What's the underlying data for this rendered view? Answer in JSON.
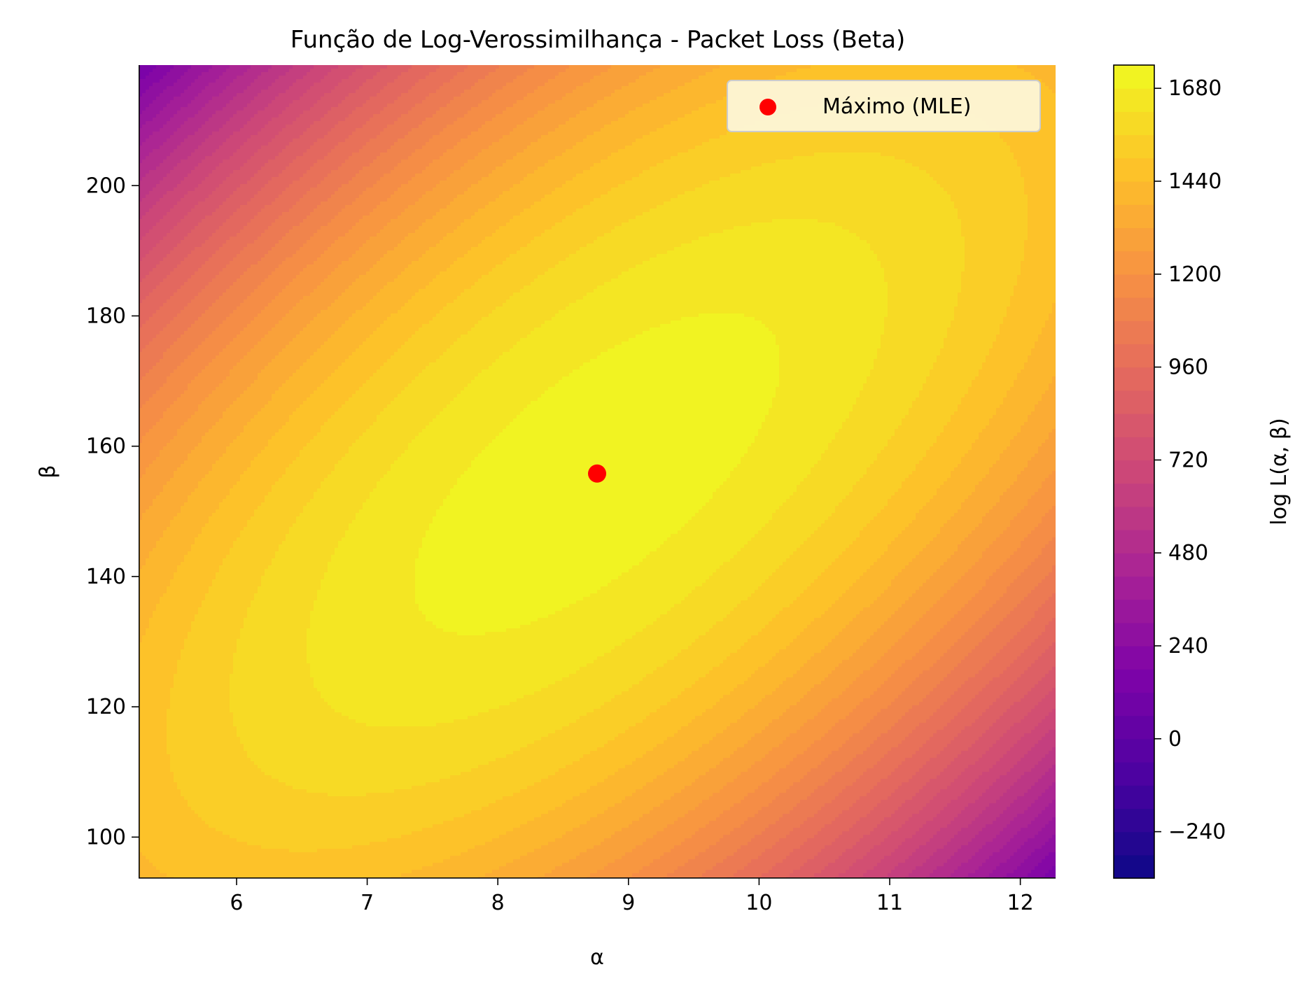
{
  "chart_data": {
    "type": "heatmap",
    "subtype": "filled-contour",
    "title": "Função de Log-Verossimilhança - Packet Loss (Beta)",
    "xlabel": "α",
    "ylabel": "β",
    "colorbar_label": "log L(α, β)",
    "colormap": "plasma",
    "xlim": [
      5.25,
      12.27
    ],
    "ylim": [
      93.7,
      218.5
    ],
    "x_ticks": [
      6,
      7,
      8,
      9,
      10,
      11,
      12
    ],
    "y_ticks": [
      100,
      120,
      140,
      160,
      180,
      200
    ],
    "colorbar_range": [
      -360,
      1740
    ],
    "colorbar_ticks": [
      -240,
      0,
      240,
      480,
      720,
      960,
      1200,
      1440,
      1680
    ],
    "x_tick_labels": [
      "6",
      "7",
      "8",
      "9",
      "10",
      "11",
      "12"
    ],
    "y_tick_labels": [
      "100",
      "120",
      "140",
      "160",
      "180",
      "200"
    ],
    "colorbar_tick_labels": [
      "−240",
      "0",
      "240",
      "480",
      "720",
      "960",
      "1200",
      "1440",
      "1680"
    ],
    "contour_levels_step": 60,
    "mle": {
      "alpha": 8.76,
      "beta": 155.8,
      "loglik": 1720
    },
    "legend": {
      "label": "Máximo (MLE)",
      "location": "upper right",
      "marker_color": "#ff0000"
    },
    "contour_line_color": "#e0e0e0"
  }
}
